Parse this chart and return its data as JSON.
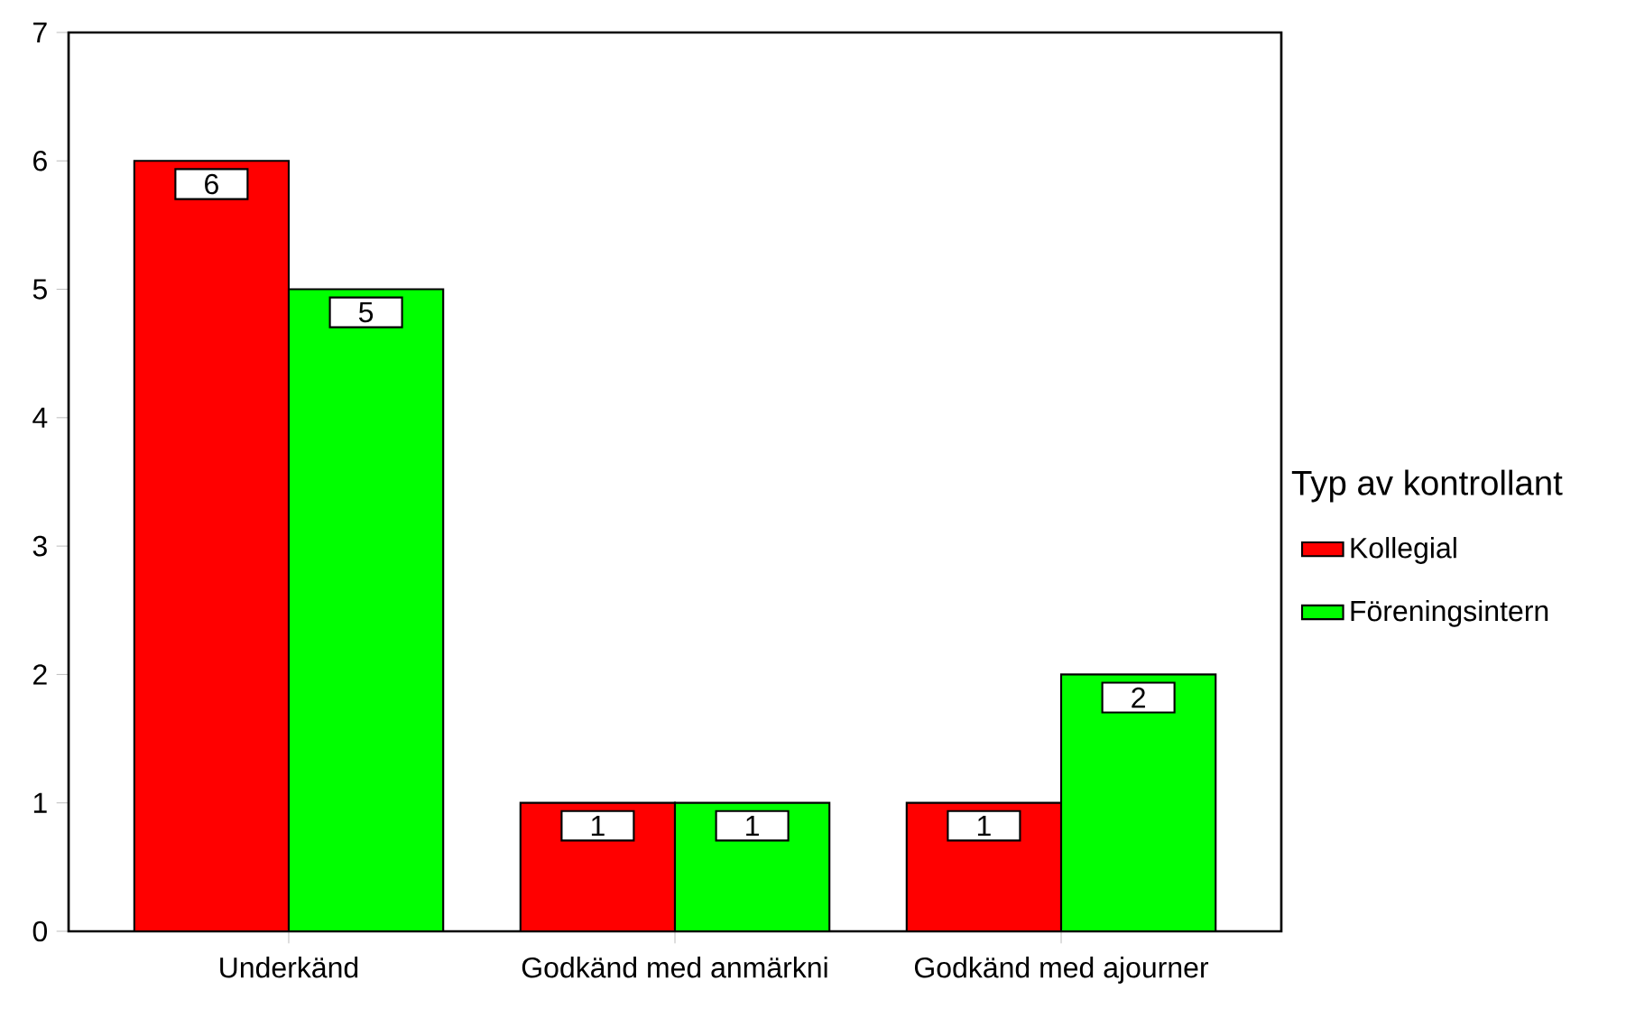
{
  "chart_data": {
    "type": "bar",
    "categories": [
      "Underkänd",
      "Godkänd med anmärkni",
      "Godkänd med ajourner"
    ],
    "series": [
      {
        "name": "Kollegial",
        "color": "#ff0000",
        "values": [
          6,
          1,
          1
        ]
      },
      {
        "name": "Föreningsintern",
        "color": "#00ff00",
        "values": [
          5,
          1,
          2
        ]
      }
    ],
    "ylim": [
      0,
      7
    ],
    "yticks": [
      0,
      1,
      2,
      3,
      4,
      5,
      6,
      7
    ],
    "legend_title": "Typ av kontrollant",
    "legend": "right",
    "data_labels": true
  }
}
